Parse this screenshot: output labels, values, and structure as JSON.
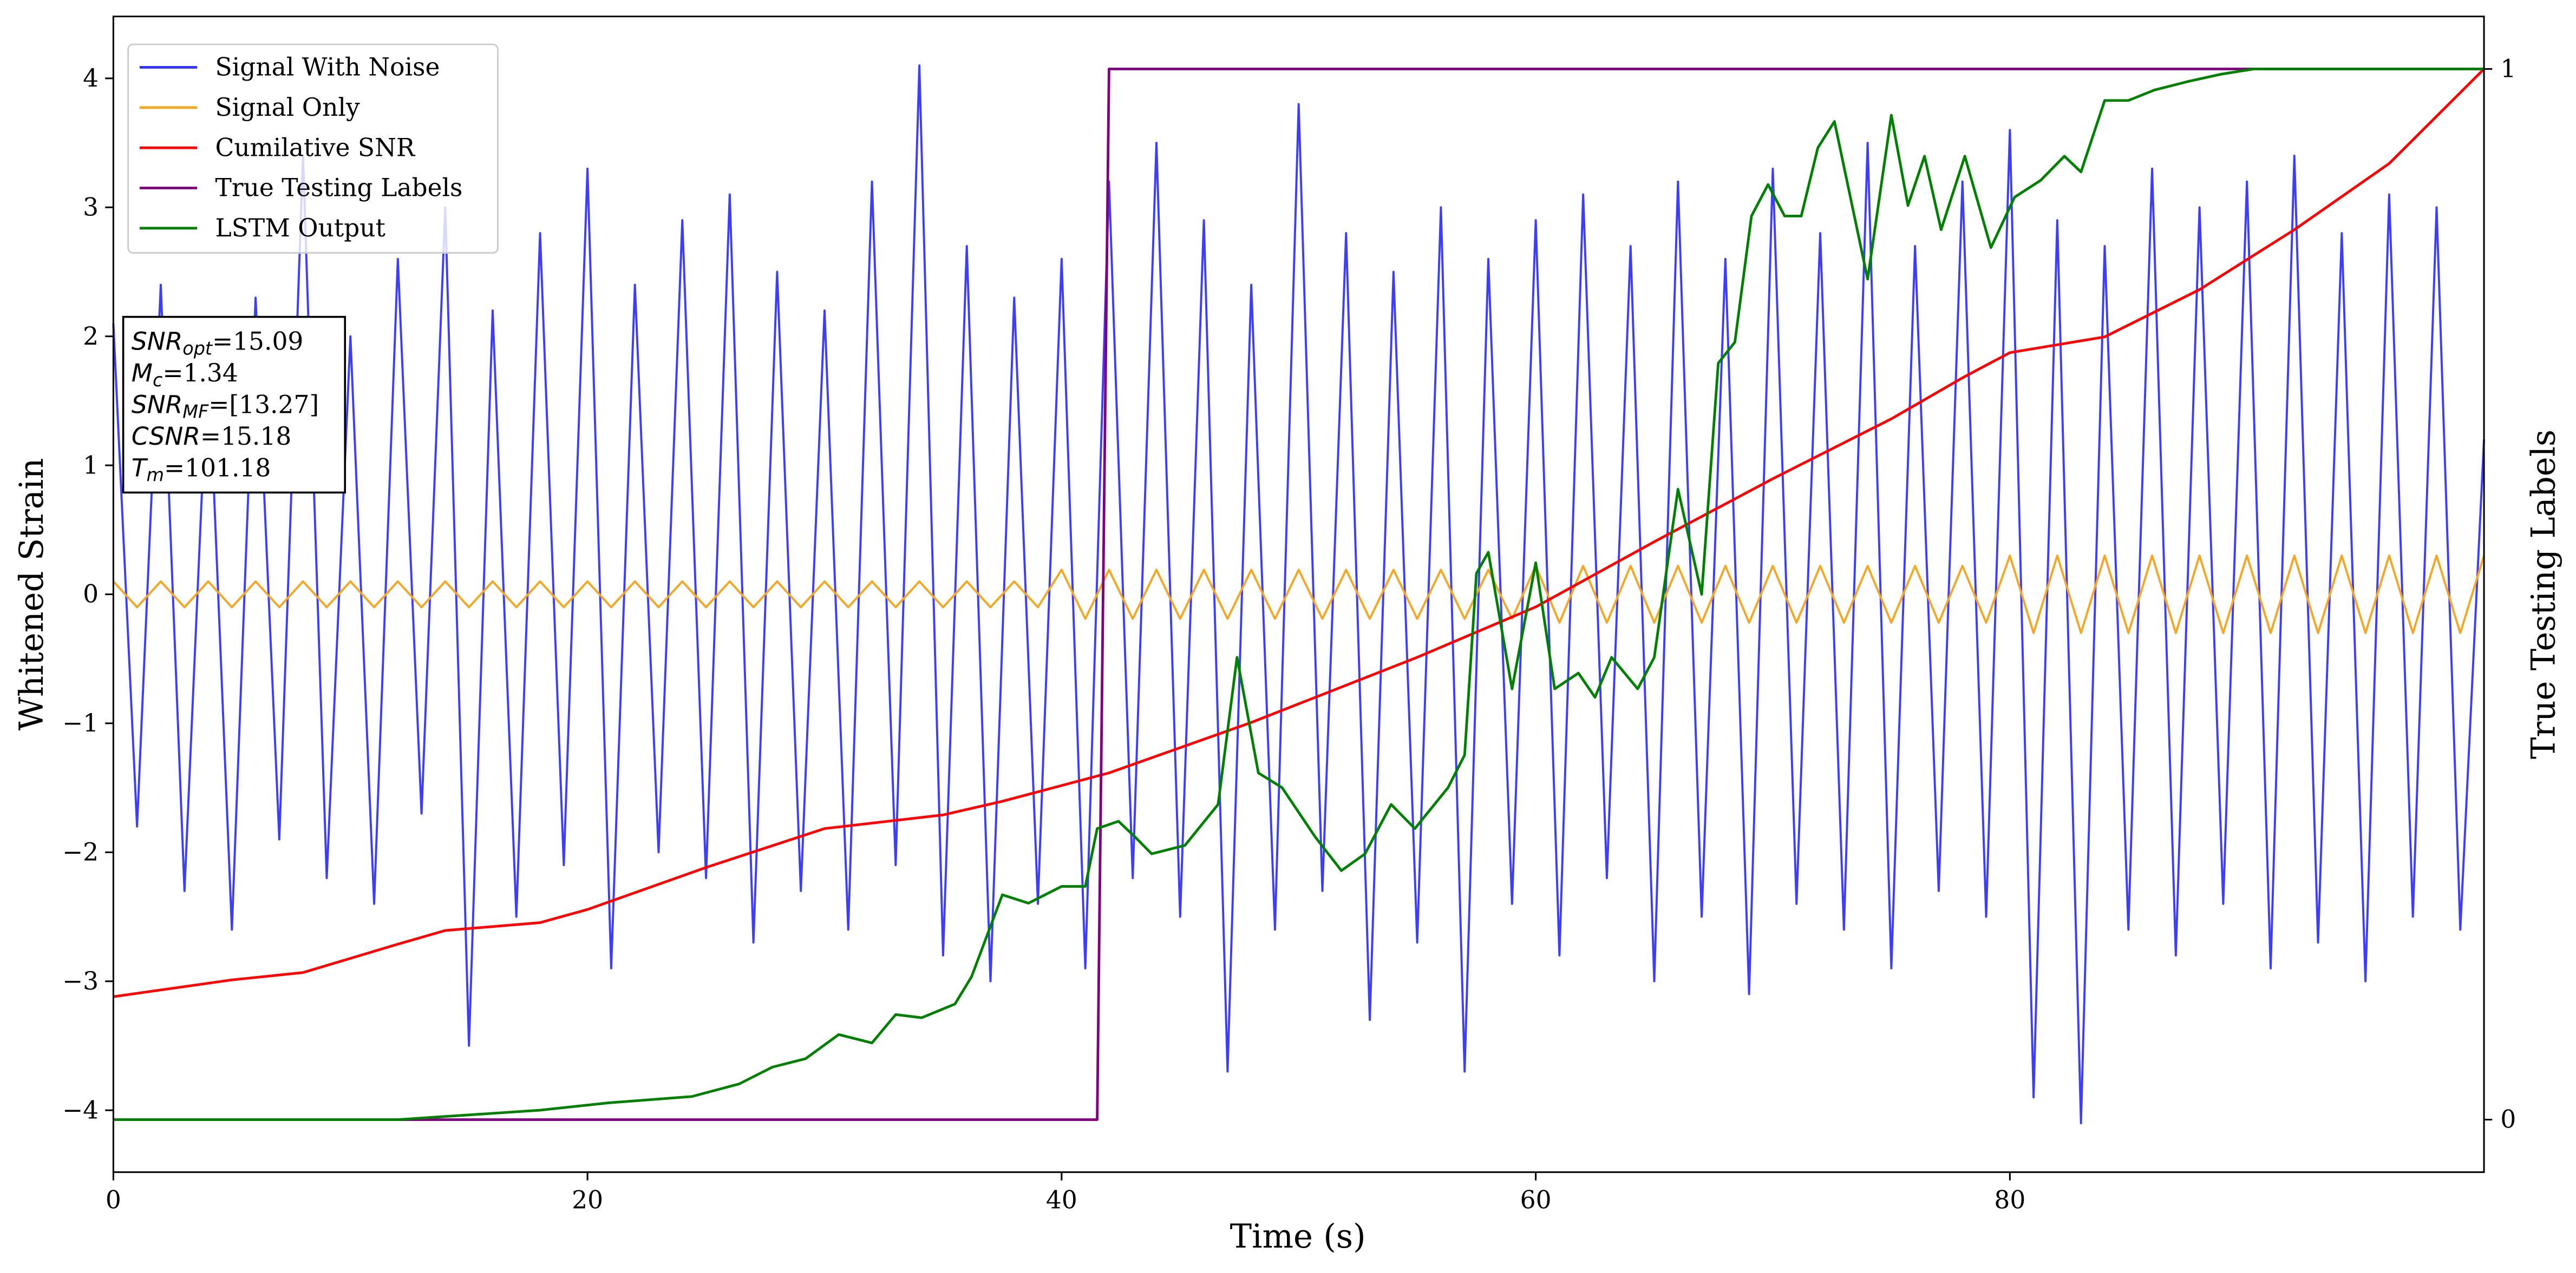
{
  "chart_data": {
    "type": "line",
    "xlabel": "Time (s)",
    "ylabel": "Whitened Strain",
    "y2label": "True Testing Labels",
    "xlim": [
      0,
      100
    ],
    "ylim": [
      -4.48,
      4.48
    ],
    "y2lim": [
      -0.05,
      1.05
    ],
    "xticks": [
      0,
      20,
      40,
      60,
      80
    ],
    "yticks": [
      {
        "value": -4,
        "label": "−4"
      },
      {
        "value": -3,
        "label": "−3"
      },
      {
        "value": -2,
        "label": "−2"
      },
      {
        "value": -1,
        "label": "−1"
      },
      0,
      1,
      2,
      3,
      4
    ],
    "y2ticks": [
      0,
      1
    ],
    "legend": "upper left",
    "series": [
      {
        "name": "Signal With Noise",
        "color": "#3333ff",
        "x": [
          0,
          1,
          2,
          3,
          4,
          5,
          6,
          7,
          8,
          9,
          10,
          11,
          12,
          13,
          14,
          15,
          16,
          17,
          18,
          19,
          20,
          21,
          22,
          23,
          24,
          25,
          26,
          27,
          28,
          29,
          30,
          31,
          32,
          33,
          34,
          35,
          36,
          37,
          38,
          39,
          40,
          41,
          42,
          43,
          44,
          45,
          46,
          47,
          48,
          49,
          50,
          51,
          52,
          53,
          54,
          55,
          56,
          57,
          58,
          59,
          60,
          61,
          62,
          63,
          64,
          65,
          66,
          67,
          68,
          69,
          70,
          71,
          72,
          73,
          74,
          75,
          76,
          77,
          78,
          79,
          80,
          81,
          82,
          83,
          84,
          85,
          86,
          87,
          88,
          89,
          90,
          91,
          92,
          93,
          94,
          95,
          96,
          97,
          98,
          99,
          100
        ],
        "values": [
          2.1,
          -1.8,
          2.4,
          -2.3,
          1.9,
          -2.6,
          2.3,
          -1.9,
          3.4,
          -2.2,
          2.0,
          -2.4,
          2.6,
          -1.7,
          3.0,
          -3.5,
          2.2,
          -2.5,
          2.8,
          -2.1,
          3.3,
          -2.9,
          2.4,
          -2.0,
          2.9,
          -2.2,
          3.1,
          -2.7,
          2.5,
          -2.3,
          2.2,
          -2.6,
          3.2,
          -2.1,
          4.1,
          -2.8,
          2.7,
          -3.0,
          2.3,
          -2.4,
          2.6,
          -2.9,
          3.2,
          -2.2,
          3.5,
          -2.5,
          2.9,
          -3.7,
          2.4,
          -2.6,
          3.8,
          -2.3,
          2.8,
          -3.3,
          2.5,
          -2.7,
          3.0,
          -3.7,
          2.6,
          -2.4,
          2.9,
          -2.8,
          3.1,
          -2.2,
          2.7,
          -3.0,
          3.2,
          -2.5,
          2.6,
          -3.1,
          3.3,
          -2.4,
          2.8,
          -2.6,
          3.5,
          -2.9,
          2.7,
          -2.3,
          3.2,
          -2.5,
          3.6,
          -3.9,
          2.9,
          -4.1,
          2.7,
          -2.6,
          3.3,
          -2.8,
          3.0,
          -2.4,
          3.2,
          -2.9,
          3.4,
          -2.7,
          2.8,
          -3.0,
          3.1,
          -2.5,
          3.0,
          -2.6,
          1.2
        ]
      },
      {
        "name": "Signal Only",
        "color": "#f5a623",
        "x": [
          0,
          1,
          2,
          3,
          4,
          5,
          6,
          7,
          8,
          9,
          10,
          11,
          12,
          13,
          14,
          15,
          16,
          17,
          18,
          19,
          20,
          21,
          22,
          23,
          24,
          25,
          26,
          27,
          28,
          29,
          30,
          31,
          32,
          33,
          34,
          35,
          36,
          37,
          38,
          39,
          40,
          41,
          42,
          43,
          44,
          45,
          46,
          47,
          48,
          49,
          50,
          51,
          52,
          53,
          54,
          55,
          56,
          57,
          58,
          59,
          60,
          61,
          62,
          63,
          64,
          65,
          66,
          67,
          68,
          69,
          70,
          71,
          72,
          73,
          74,
          75,
          76,
          77,
          78,
          79,
          80,
          81,
          82,
          83,
          84,
          85,
          86,
          87,
          88,
          89,
          90,
          91,
          92,
          93,
          94,
          95,
          96,
          97,
          98,
          99,
          100
        ],
        "values": [
          0.1,
          -0.1,
          0.1,
          -0.1,
          0.1,
          -0.1,
          0.1,
          -0.1,
          0.1,
          -0.1,
          0.1,
          -0.1,
          0.1,
          -0.1,
          0.1,
          -0.1,
          0.1,
          -0.1,
          0.1,
          -0.1,
          0.1,
          -0.1,
          0.1,
          -0.1,
          0.1,
          -0.1,
          0.1,
          -0.1,
          0.1,
          -0.1,
          0.1,
          -0.1,
          0.1,
          -0.1,
          0.1,
          -0.1,
          0.1,
          -0.1,
          0.1,
          -0.1,
          0.19,
          -0.19,
          0.19,
          -0.19,
          0.19,
          -0.19,
          0.19,
          -0.19,
          0.19,
          -0.19,
          0.19,
          -0.19,
          0.19,
          -0.19,
          0.19,
          -0.19,
          0.19,
          -0.19,
          0.19,
          -0.19,
          0.22,
          -0.22,
          0.22,
          -0.22,
          0.22,
          -0.22,
          0.22,
          -0.22,
          0.22,
          -0.22,
          0.22,
          -0.22,
          0.22,
          -0.22,
          0.22,
          -0.22,
          0.22,
          -0.22,
          0.22,
          -0.22,
          0.3,
          -0.3,
          0.3,
          -0.3,
          0.3,
          -0.3,
          0.3,
          -0.3,
          0.3,
          -0.3,
          0.3,
          -0.3,
          0.3,
          -0.3,
          0.3,
          -0.3,
          0.3,
          -0.3,
          0.3,
          -0.3,
          0.3
        ]
      },
      {
        "name": "Cumilative SNR",
        "color": "#ff0000",
        "axis": "y2",
        "x": [
          0,
          5,
          8,
          12,
          14,
          18,
          20,
          25,
          30,
          35,
          37.5,
          42,
          48,
          55,
          60,
          65,
          70,
          75,
          78,
          80,
          84,
          88,
          92,
          96,
          100
        ],
        "values": [
          0.117,
          0.133,
          0.14,
          0.167,
          0.18,
          0.1875,
          0.2,
          0.24,
          0.277,
          0.29,
          0.303,
          0.33,
          0.378,
          0.44,
          0.488,
          0.55,
          0.61,
          0.667,
          0.706,
          0.73,
          0.745,
          0.79,
          0.847,
          0.91,
          1.0
        ]
      },
      {
        "name": "True Testing Labels",
        "color": "#800080",
        "axis": "y2",
        "x": [
          0,
          41.5,
          42,
          100
        ],
        "values": [
          0,
          0,
          1,
          1
        ]
      },
      {
        "name": "LSTM Output",
        "color": "#008000",
        "axis": "y2",
        "x": [
          0,
          12,
          16,
          18,
          20.9,
          24.4,
          26.4,
          27.8,
          29.2,
          30.6,
          32,
          33,
          34.1,
          35.5,
          36.2,
          37.5,
          38.6,
          40,
          41,
          41.5,
          42.4,
          43.1,
          43.8,
          45.2,
          46.6,
          47.4,
          48.3,
          49.3,
          50.7,
          51.8,
          52.8,
          53.9,
          54.9,
          56.3,
          57,
          57.5,
          58,
          59,
          60,
          60.8,
          61.8,
          62.5,
          63.2,
          64.3,
          65,
          66,
          67,
          67.7,
          68.4,
          69.1,
          69.8,
          70.5,
          71.2,
          71.9,
          72.6,
          74,
          75,
          75.7,
          76.4,
          77.1,
          78.1,
          79.2,
          80.2,
          81.3,
          82.3,
          83,
          84,
          85,
          86.1,
          87.5,
          88.9,
          90.3,
          100
        ],
        "values": [
          0,
          0,
          0.006,
          0.009,
          0.016,
          0.022,
          0.034,
          0.05,
          0.058,
          0.081,
          0.073,
          0.1,
          0.097,
          0.11,
          0.136,
          0.214,
          0.206,
          0.222,
          0.222,
          0.277,
          0.284,
          0.269,
          0.253,
          0.261,
          0.3,
          0.44,
          0.33,
          0.316,
          0.269,
          0.237,
          0.253,
          0.3,
          0.277,
          0.316,
          0.347,
          0.52,
          0.54,
          0.41,
          0.53,
          0.41,
          0.425,
          0.402,
          0.44,
          0.41,
          0.44,
          0.6,
          0.5,
          0.72,
          0.74,
          0.86,
          0.89,
          0.86,
          0.86,
          0.925,
          0.95,
          0.8,
          0.956,
          0.87,
          0.917,
          0.847,
          0.917,
          0.83,
          0.878,
          0.894,
          0.917,
          0.902,
          0.97,
          0.97,
          0.98,
          0.988,
          0.995,
          1.0,
          1.0
        ]
      }
    ],
    "annotations": [
      {
        "base": "SNR",
        "sub": "opt",
        "text": "=15.09"
      },
      {
        "base": "M",
        "sub": "c",
        "text": "=1.34"
      },
      {
        "base": "SNR",
        "sub": "MF",
        "text": "=[13.27]"
      },
      {
        "base": "CSNR",
        "text": "=15.18"
      },
      {
        "base": "T",
        "sub": "m",
        "text": "=101.18"
      }
    ]
  }
}
